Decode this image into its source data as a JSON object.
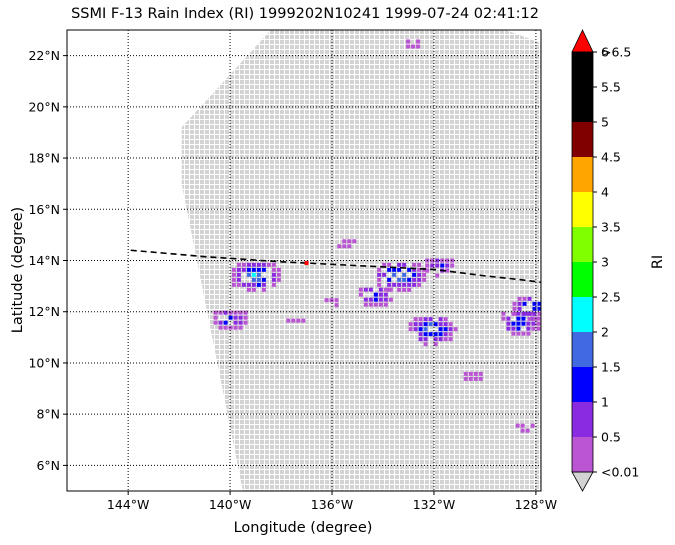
{
  "chart_data": {
    "type": "heatmap",
    "title": "SSMI F-13 Rain Index (RI) 1999202N10241 1999-07-24 02:41:12",
    "xlabel": "Longitude (degree)",
    "ylabel": "Latitude (degree)",
    "xlim": [
      -146.4,
      -127.8
    ],
    "ylim": [
      5.0,
      23.0
    ],
    "x_ticks": [
      {
        "value": -144,
        "label": "144°W"
      },
      {
        "value": -140,
        "label": "140°W"
      },
      {
        "value": -136,
        "label": "136°W"
      },
      {
        "value": -132,
        "label": "132°W"
      },
      {
        "value": -128,
        "label": "128°W"
      }
    ],
    "y_ticks": [
      {
        "value": 6,
        "label": "6°N"
      },
      {
        "value": 8,
        "label": "8°N"
      },
      {
        "value": 10,
        "label": "10°N"
      },
      {
        "value": 12,
        "label": "12°N"
      },
      {
        "value": 14,
        "label": "14°N"
      },
      {
        "value": 16,
        "label": "16°N"
      },
      {
        "value": 18,
        "label": "18°N"
      },
      {
        "value": 20,
        "label": "20°N"
      },
      {
        "value": 22,
        "label": "22°N"
      }
    ],
    "grid": true,
    "swath": {
      "color": "#d3d3d3",
      "corners": [
        [
          -138.4,
          23.0
        ],
        [
          -129.2,
          23.0
        ],
        [
          -127.8,
          22.5
        ],
        [
          -127.8,
          5.0
        ],
        [
          -139.5,
          5.0
        ],
        [
          -141.9,
          17.0
        ],
        [
          -141.9,
          19.2
        ]
      ]
    },
    "track": {
      "lon": [
        -143.9,
        -141.0,
        -138.0,
        -136.0,
        -134.0,
        -132.0,
        -130.0,
        -128.6,
        -127.8
      ],
      "lat": [
        14.4,
        14.15,
        13.95,
        13.85,
        13.75,
        13.65,
        13.4,
        13.25,
        13.15
      ],
      "style": "dashed",
      "color": "#000000"
    },
    "storm_center": {
      "lon": -137.0,
      "lat": 13.9,
      "color": "#ff0000"
    },
    "rain_clusters": [
      {
        "lon": -139.0,
        "lat": 13.4,
        "peak_index": 2.3
      },
      {
        "lon": -140.0,
        "lat": 11.7,
        "peak_index": 1.5
      },
      {
        "lon": -135.5,
        "lat": 14.7,
        "peak_index": 0.5
      },
      {
        "lon": -133.3,
        "lat": 13.4,
        "peak_index": 2.3
      },
      {
        "lon": -134.3,
        "lat": 12.6,
        "peak_index": 1.5
      },
      {
        "lon": -132.1,
        "lat": 11.3,
        "peak_index": 2.2
      },
      {
        "lon": -131.8,
        "lat": 13.8,
        "peak_index": 1.2
      },
      {
        "lon": -128.6,
        "lat": 11.6,
        "peak_index": 1.8
      },
      {
        "lon": -128.2,
        "lat": 12.2,
        "peak_index": 1.7
      },
      {
        "lon": -130.5,
        "lat": 9.5,
        "peak_index": 0.6
      },
      {
        "lon": -128.5,
        "lat": 7.5,
        "peak_index": 0.5
      },
      {
        "lon": -132.8,
        "lat": 22.5,
        "peak_index": 0.5
      },
      {
        "lon": -136.0,
        "lat": 12.4,
        "peak_index": 0.5
      },
      {
        "lon": -137.5,
        "lat": 11.6,
        "peak_index": 0.5
      }
    ],
    "colorbar": {
      "label": "RI",
      "tick_labels": [
        "<0.01",
        "0.5",
        "1",
        "1.5",
        "2",
        "2.5",
        "3",
        "3.5",
        "4",
        "4.5",
        "5",
        "5.5",
        "6",
        ">6.5"
      ],
      "colors": [
        "#ba55d3",
        "#8a2be2",
        "#0000ff",
        "#4169e1",
        "#00ffff",
        "#00ff00",
        "#7fff00",
        "#ffff00",
        "#ffa500",
        "#800000",
        "#000000",
        "#000000"
      ],
      "under_color": "#d3d3d3",
      "over_color": "#ff0000"
    }
  }
}
